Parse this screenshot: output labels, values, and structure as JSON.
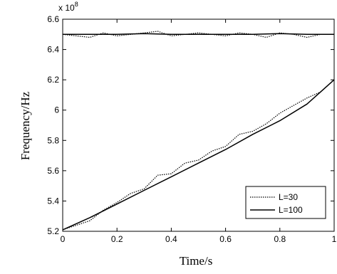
{
  "chart_data": {
    "type": "line",
    "title": "",
    "xlabel": "Time/s",
    "ylabel": "Frequency/Hz",
    "y_multiplier": "x 10",
    "y_exponent": "8",
    "xlim": [
      0,
      1
    ],
    "ylim": [
      5.2,
      6.6
    ],
    "x_ticks": [
      0,
      0.2,
      0.4,
      0.6,
      0.8,
      1
    ],
    "x_tick_labels": [
      "0",
      "0.2",
      "0.4",
      "0.6",
      "0.8",
      "1"
    ],
    "y_ticks": [
      5.2,
      5.4,
      5.6,
      5.8,
      6,
      6.2,
      6.4,
      6.6
    ],
    "y_tick_labels": [
      "5.2",
      "5.4",
      "5.6",
      "5.8",
      "6",
      "6.2",
      "6.4",
      "6.6"
    ],
    "grid": false,
    "legend_position": "lower-right",
    "series": [
      {
        "name": "L=30",
        "style": "dotted",
        "color": "#000000",
        "x": [
          0,
          0.05,
          0.1,
          0.15,
          0.2,
          0.25,
          0.3,
          0.35,
          0.4,
          0.45,
          0.5,
          0.55,
          0.6,
          0.65,
          0.7,
          0.75,
          0.8,
          0.85,
          0.9,
          0.95,
          1
        ],
        "y": [
          5.21,
          5.24,
          5.27,
          5.34,
          5.39,
          5.45,
          5.48,
          5.57,
          5.58,
          5.65,
          5.67,
          5.73,
          5.76,
          5.84,
          5.86,
          5.91,
          5.98,
          6.03,
          6.08,
          6.12,
          6.2
        ]
      },
      {
        "name": "L=100",
        "style": "solid",
        "color": "#000000",
        "x": [
          0,
          0.1,
          0.2,
          0.3,
          0.4,
          0.5,
          0.6,
          0.7,
          0.8,
          0.9,
          1
        ],
        "y": [
          5.21,
          5.29,
          5.38,
          5.47,
          5.56,
          5.65,
          5.74,
          5.84,
          5.93,
          6.04,
          6.2
        ]
      },
      {
        "name": "L=30",
        "style": "dotted",
        "color": "#000000",
        "x": [
          0,
          0.05,
          0.1,
          0.15,
          0.2,
          0.25,
          0.3,
          0.35,
          0.4,
          0.45,
          0.5,
          0.55,
          0.6,
          0.65,
          0.7,
          0.75,
          0.8,
          0.85,
          0.9,
          0.95,
          1
        ],
        "y": [
          6.5,
          6.49,
          6.48,
          6.51,
          6.49,
          6.5,
          6.51,
          6.52,
          6.49,
          6.5,
          6.51,
          6.5,
          6.49,
          6.51,
          6.5,
          6.48,
          6.51,
          6.5,
          6.48,
          6.5,
          6.5
        ]
      },
      {
        "name": "L=100",
        "style": "solid",
        "color": "#000000",
        "x": [
          0,
          0.1,
          0.2,
          0.3,
          0.4,
          0.5,
          0.6,
          0.7,
          0.8,
          0.9,
          1
        ],
        "y": [
          6.5,
          6.5,
          6.5,
          6.505,
          6.5,
          6.5,
          6.5,
          6.5,
          6.505,
          6.5,
          6.5
        ]
      }
    ],
    "legend": [
      {
        "label": "L=30",
        "style": "dotted"
      },
      {
        "label": "L=100",
        "style": "solid"
      }
    ]
  }
}
